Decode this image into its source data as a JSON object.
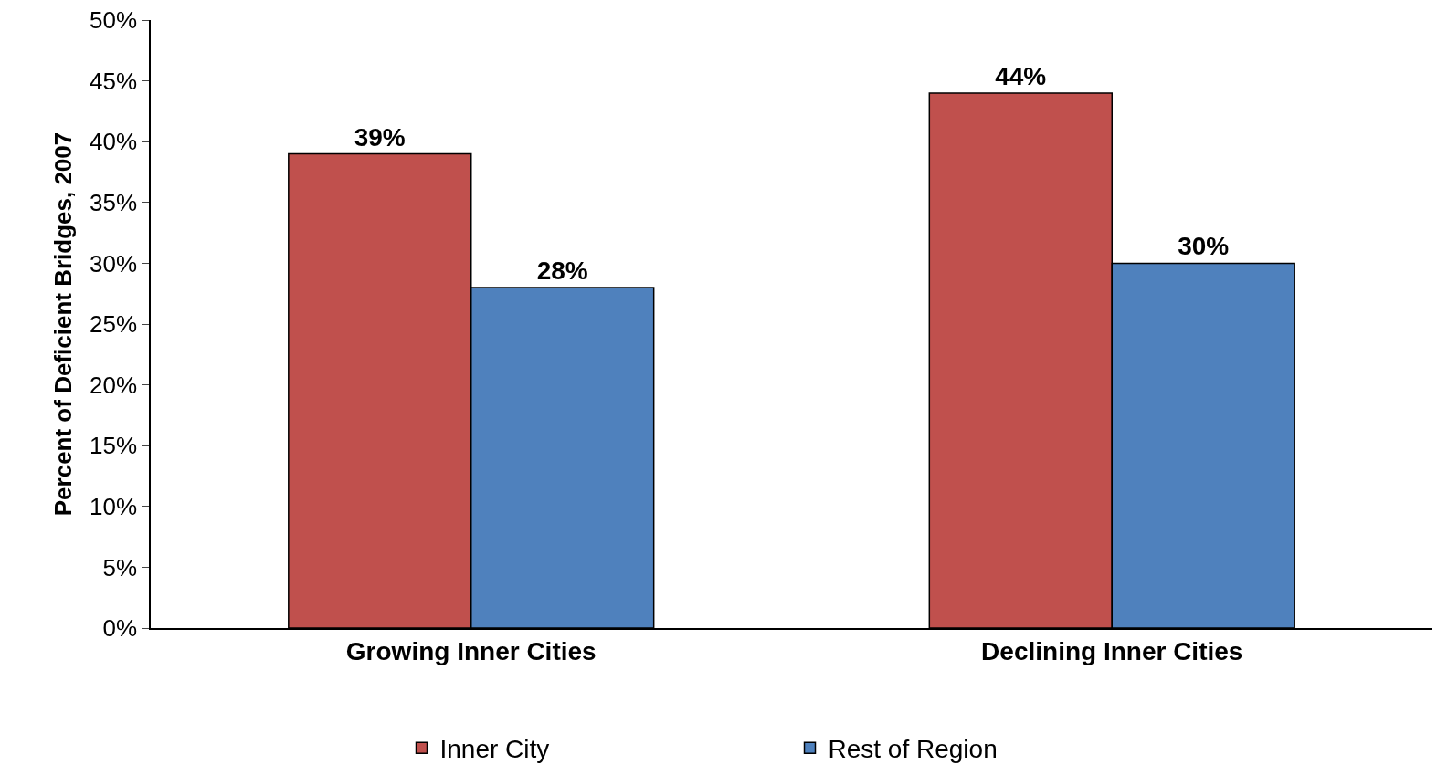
{
  "chart_data": {
    "type": "bar",
    "ylabel": "Percent of Deficient Bridges, 2007",
    "categories": [
      "Growing Inner Cities",
      "Declining Inner Cities"
    ],
    "series": [
      {
        "name": "Inner City",
        "color": "#c0504d",
        "values": [
          39,
          44
        ],
        "value_labels": [
          "39%",
          "44%"
        ]
      },
      {
        "name": "Rest of Region",
        "color": "#4f81bd",
        "values": [
          28,
          30
        ],
        "value_labels": [
          "28%",
          "30%"
        ]
      }
    ],
    "ylim": [
      0,
      50
    ],
    "yticks": [
      {
        "value": 0,
        "label": "0%"
      },
      {
        "value": 5,
        "label": "5%"
      },
      {
        "value": 10,
        "label": "10%"
      },
      {
        "value": 15,
        "label": "15%"
      },
      {
        "value": 20,
        "label": "20%"
      },
      {
        "value": 25,
        "label": "25%"
      },
      {
        "value": 30,
        "label": "30%"
      },
      {
        "value": 35,
        "label": "35%"
      },
      {
        "value": 40,
        "label": "40%"
      },
      {
        "value": 45,
        "label": "45%"
      },
      {
        "value": 50,
        "label": "50%"
      }
    ],
    "grid": false,
    "legend": "bottom"
  }
}
